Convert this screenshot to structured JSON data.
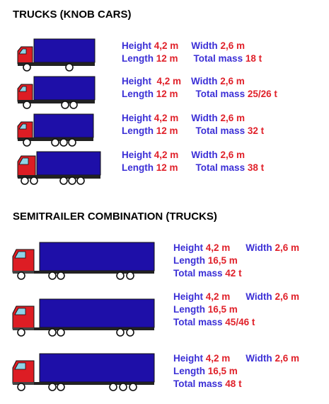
{
  "colors": {
    "label": "#3b2fd6",
    "value": "#e0212a",
    "cargo_box": "#1e0fa8",
    "cab": "#dd1d24"
  },
  "sections": {
    "trucks_title": "TRUCKS (KNOB CARS)",
    "semi_title": "SEMITRAILER COMBINATION (TRUCKS)"
  },
  "labels": {
    "height": "Height",
    "width": "Width",
    "length": "Length",
    "total_mass": "Total mass"
  },
  "trucks": [
    {
      "icon": "two-axle-truck-icon",
      "height": "4,2 m",
      "width": "2,6 m",
      "length": "12 m",
      "total_mass": "18 t"
    },
    {
      "icon": "three-axle-truck-icon",
      "height": "4,2 m",
      "width": "2,6 m",
      "length": "12 m",
      "total_mass": "25/26 t"
    },
    {
      "icon": "four-axle-truck-icon",
      "height": "4,2 m",
      "width": "2,6 m",
      "length": "12 m",
      "total_mass": "32 t"
    },
    {
      "icon": "five-axle-truck-icon",
      "height": "4,2 m",
      "width": "2,6 m",
      "length": "12 m",
      "total_mass": "38 t"
    }
  ],
  "semitrailers": [
    {
      "icon": "semitrailer-5-axle-icon",
      "height": "4,2 m",
      "width": "2,6 m",
      "length": "16,5 m",
      "total_mass": "42 t"
    },
    {
      "icon": "semitrailer-5-axle-icon",
      "height": "4,2 m",
      "width": "2,6 m",
      "length": "16,5 m",
      "total_mass": "45/46 t"
    },
    {
      "icon": "semitrailer-6-axle-icon",
      "height": "4,2 m",
      "width": "2,6 m",
      "length": "16,5 m",
      "total_mass": "48 t"
    }
  ]
}
